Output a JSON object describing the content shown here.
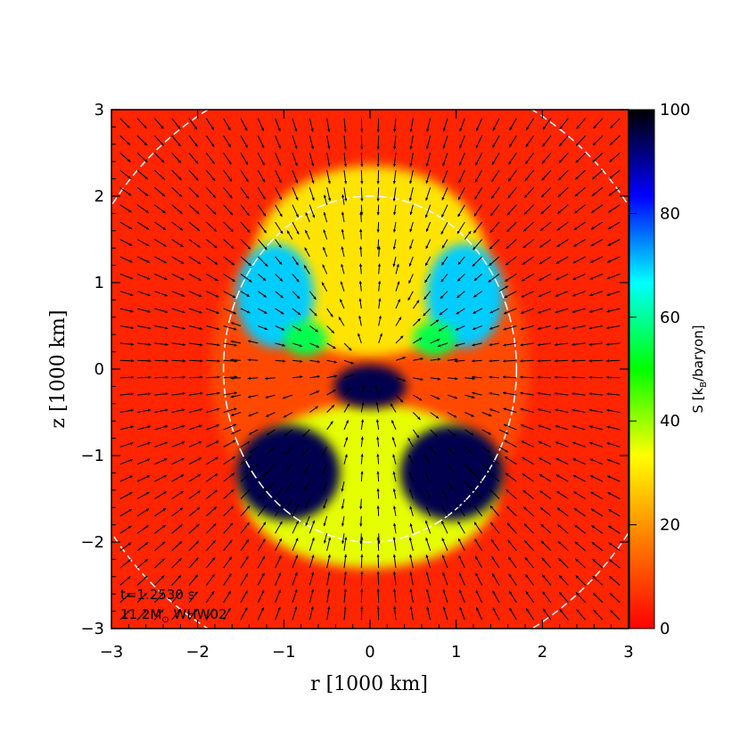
{
  "chart_data": {
    "type": "heatmap",
    "title": "",
    "xlabel": "r [1000 km]",
    "ylabel": "z [1000 km]",
    "xlim": [
      -3,
      3
    ],
    "ylim": [
      -3,
      3
    ],
    "xticks": [
      "−3",
      "−2",
      "−1",
      "0",
      "1",
      "2",
      "3"
    ],
    "yticks": [
      "−3",
      "−2",
      "−1",
      "0",
      "1",
      "2",
      "3"
    ],
    "colorbar": {
      "label_main": "S [k",
      "label_sub": "B",
      "label_end": "/baryon]",
      "range": [
        0,
        100
      ],
      "ticks": [
        "0",
        "20",
        "40",
        "60",
        "80",
        "100"
      ],
      "colormap": [
        "#ff0000",
        "#ff7a00",
        "#ffff00",
        "#00ff00",
        "#00ffff",
        "#0000ff",
        "#000000"
      ]
    },
    "annotations": {
      "time": "t=1.2530 s",
      "model_mass": "11.2M",
      "model_sun": "⊙",
      "model_name": " WHW02"
    },
    "regions": [
      {
        "name": "ambient",
        "entropy": 5,
        "x": [
          -3,
          3
        ],
        "y": [
          -3,
          3
        ]
      },
      {
        "name": "shocked-envelope",
        "entropy": 10,
        "cx": 0,
        "cy": 0,
        "rx": 1.85,
        "ry": 2.1
      },
      {
        "name": "upper-bubble",
        "entropy": 30,
        "cx": 0,
        "cy": 1.25,
        "rx": 1.35,
        "ry": 1.1
      },
      {
        "name": "upper-plume-left",
        "entropy": 70,
        "cx": -1.1,
        "cy": 0.85,
        "rx": 0.45,
        "ry": 0.6
      },
      {
        "name": "upper-plume-right",
        "entropy": 70,
        "cx": 1.1,
        "cy": 0.85,
        "rx": 0.45,
        "ry": 0.6
      },
      {
        "name": "upper-eye-left",
        "entropy": 55,
        "cx": -0.75,
        "cy": 0.35,
        "rx": 0.25,
        "ry": 0.2
      },
      {
        "name": "upper-eye-right",
        "entropy": 55,
        "cx": 0.75,
        "cy": 0.35,
        "rx": 0.25,
        "ry": 0.2
      },
      {
        "name": "lower-bubble",
        "entropy": 35,
        "cx": 0,
        "cy": -1.35,
        "rx": 1.5,
        "ry": 0.95
      },
      {
        "name": "lower-plume-left",
        "entropy": 95,
        "cx": -0.95,
        "cy": -1.2,
        "rx": 0.6,
        "ry": 0.55
      },
      {
        "name": "lower-plume-right",
        "entropy": 95,
        "cx": 0.95,
        "cy": -1.2,
        "rx": 0.6,
        "ry": 0.55
      },
      {
        "name": "core",
        "entropy": 95,
        "cx": 0,
        "cy": -0.2,
        "rx": 0.42,
        "ry": 0.25
      }
    ]
  }
}
